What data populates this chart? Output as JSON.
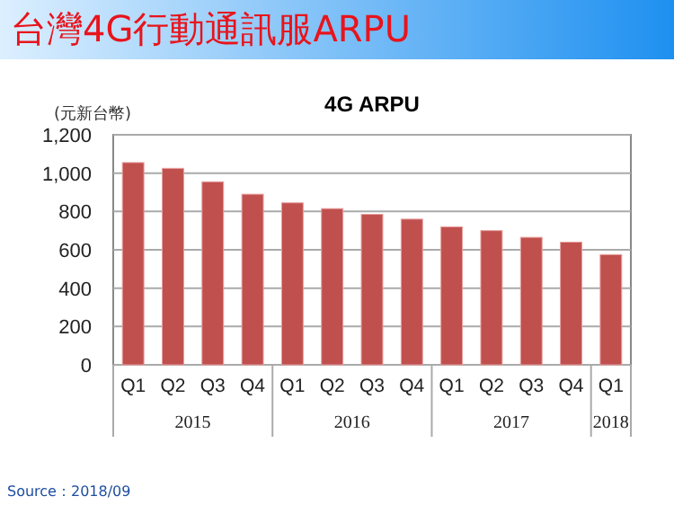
{
  "chart_data": {
    "type": "bar",
    "title": "台灣4G行動通訊服ARPU",
    "subtitle": "4G ARPU",
    "ylabel": "(元新台幣)",
    "categories": [
      "Q1",
      "Q2",
      "Q3",
      "Q4",
      "Q1",
      "Q2",
      "Q3",
      "Q4",
      "Q1",
      "Q2",
      "Q3",
      "Q4",
      "Q1"
    ],
    "values": [
      1055,
      1025,
      955,
      890,
      845,
      815,
      785,
      760,
      720,
      700,
      665,
      640,
      575
    ],
    "color": "#c0504d",
    "ylim": [
      0,
      1200
    ],
    "yticks": [
      {
        "value": 0,
        "label": "0"
      },
      {
        "value": 200,
        "label": "200"
      },
      {
        "value": 400,
        "label": "400"
      },
      {
        "value": 600,
        "label": "600"
      },
      {
        "value": 800,
        "label": "800"
      },
      {
        "value": 1000,
        "label": "1,000"
      },
      {
        "value": 1200,
        "label": "1,200"
      }
    ],
    "grid": "y",
    "annotations": [
      "2015",
      "2016",
      "2017",
      "2018",
      "Source：2018/09"
    ]
  }
}
